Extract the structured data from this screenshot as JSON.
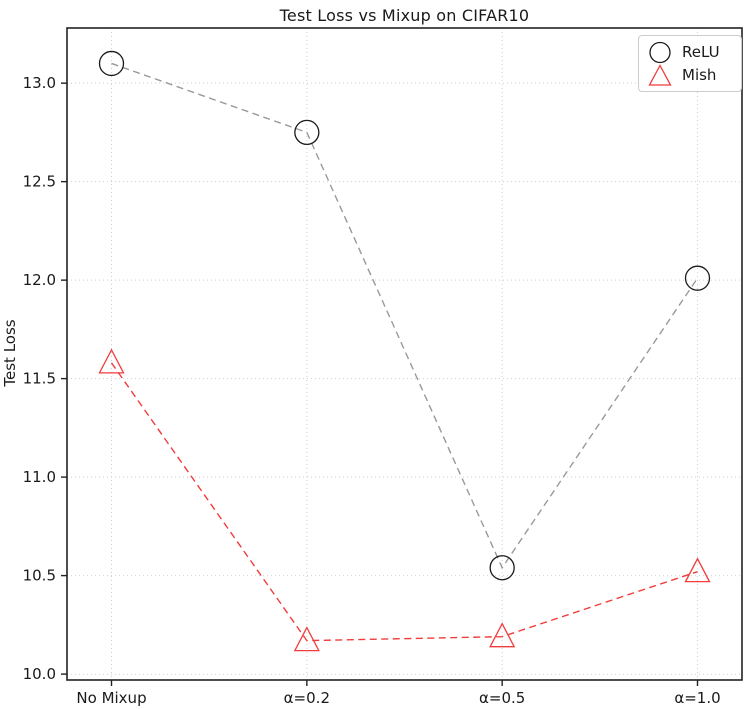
{
  "chart_data": {
    "type": "line",
    "title": "Test Loss vs Mixup on CIFAR10",
    "xlabel": "",
    "ylabel": "Test Loss",
    "categories": [
      "No Mixup",
      "α=0.2",
      "α=0.5",
      "α=1.0"
    ],
    "series": [
      {
        "name": "ReLU",
        "marker": "circle",
        "line_color": "#999999",
        "marker_color": "#1a1a1a",
        "values": [
          13.1,
          12.75,
          10.54,
          12.01
        ]
      },
      {
        "name": "Mish",
        "marker": "triangle",
        "line_color": "#f23b3b",
        "marker_color": "#f23b3b",
        "values": [
          11.58,
          10.17,
          10.19,
          10.52
        ]
      }
    ],
    "yticks": [
      10.0,
      10.5,
      11.0,
      11.5,
      12.0,
      12.5,
      13.0
    ],
    "ylim": [
      9.97,
      13.28
    ],
    "grid": true,
    "grid_style": "dotted",
    "line_style": "dashed",
    "legend_position": "upper right",
    "colors": {
      "frame": "#222222",
      "grid": "#cfcfcf",
      "tick_text": "#1a1a1a"
    }
  }
}
